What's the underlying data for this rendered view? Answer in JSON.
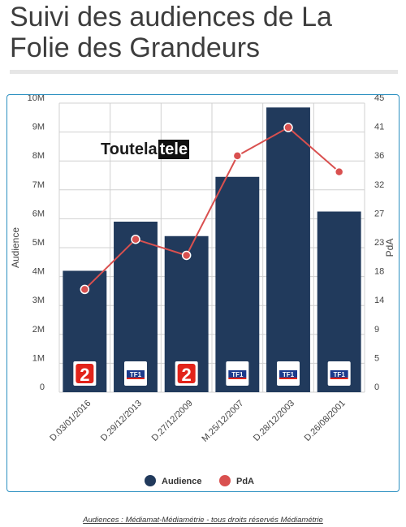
{
  "page": {
    "title": "Suivi des audiences de La Folie des Grandeurs",
    "footer": "Audiences : Médiamat-Médiamétrie - tous droits réservés Médiamétrie"
  },
  "logo": {
    "part1": "Toutela",
    "part2": "tele"
  },
  "chart_data": {
    "type": "bar",
    "categories": [
      "D.03/01/2016",
      "D.29/12/2013",
      "D.27/12/2009",
      "M.25/12/2007",
      "D.28/12/2003",
      "D.26/08/2001"
    ],
    "channels": [
      "France 2",
      "TF1",
      "France 2",
      "TF1",
      "TF1",
      "TF1"
    ],
    "series": [
      {
        "name": "Audience",
        "type": "bar",
        "axis": "left",
        "color": "#213a5c",
        "values": [
          4200000,
          5900000,
          5400000,
          7450000,
          9850000,
          6250000
        ]
      },
      {
        "name": "PdA",
        "type": "line",
        "axis": "right",
        "color": "#d9504f",
        "values": [
          16,
          23.8,
          21.3,
          36.8,
          41.2,
          34.3
        ]
      }
    ],
    "ylabel": "Audience",
    "y2label": "PdA",
    "ylim": [
      0,
      10000000
    ],
    "y2lim": [
      0,
      45
    ],
    "yticks": [
      "0",
      "1M",
      "2M",
      "3M",
      "4M",
      "5M",
      "6M",
      "7M",
      "8M",
      "9M",
      "10M"
    ],
    "y2ticks": [
      "0",
      "5",
      "9",
      "14",
      "18",
      "23",
      "27",
      "32",
      "36",
      "41",
      "45"
    ],
    "legend": [
      "Audience",
      "PdA"
    ],
    "legend_position": "bottom",
    "grid": true
  }
}
